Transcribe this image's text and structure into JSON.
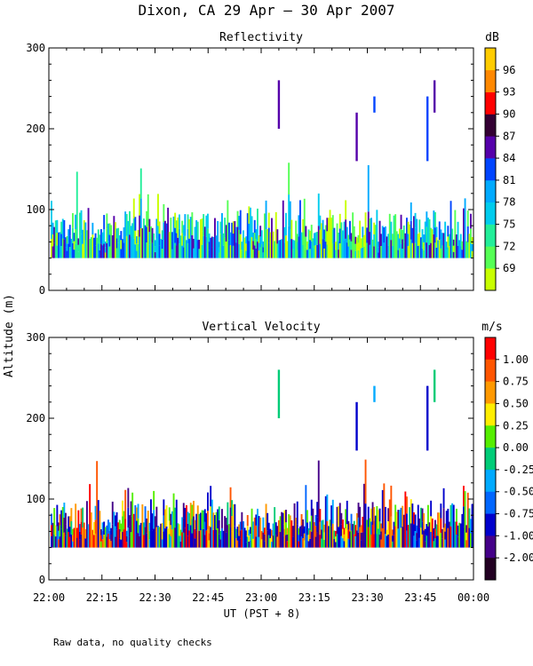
{
  "title": "Dixon, CA 29 Apr — 30 Apr 2007",
  "shared_ylabel": "Altitude (m)",
  "xlabel": "UT  (PST + 8)",
  "footer": "Raw data, no quality checks",
  "x_ticks": [
    "22:00",
    "22:15",
    "22:30",
    "22:45",
    "23:00",
    "23:15",
    "23:30",
    "23:45",
    "00:00"
  ],
  "chart_data": [
    {
      "type": "heatmap",
      "title": "Reflectivity",
      "ylabel": "Altitude (m)",
      "xlabel": "UT  (PST + 8)",
      "x_range_minutes": [
        0,
        120
      ],
      "x_tick_labels": [
        "22:00",
        "22:15",
        "22:30",
        "22:45",
        "23:00",
        "23:15",
        "23:30",
        "23:45",
        "00:00"
      ],
      "ylim": [
        0,
        300
      ],
      "y_ticks": [
        0,
        100,
        200,
        300
      ],
      "colorbar": {
        "unit": "dB",
        "levels": [
          69,
          72,
          75,
          78,
          81,
          84,
          87,
          90,
          93,
          96
        ],
        "colors": [
          "#c8ff00",
          "#55ff55",
          "#22ee99",
          "#00ccee",
          "#00aaff",
          "#0044ff",
          "#5500aa",
          "#330033",
          "#ff0000",
          "#ff8800",
          "#ffcc00"
        ]
      },
      "features": [
        {
          "kind": "near-surface echo band",
          "from_min": 0,
          "to_min": 120,
          "alt_base_m": 40,
          "alt_top_m": 100,
          "max_spike_m": 160
        },
        {
          "kind": "elevated echo",
          "time": "23:05",
          "alt_m": [
            200,
            260
          ],
          "value_db": 84
        },
        {
          "kind": "elevated echo",
          "time": "23:27",
          "alt_m": [
            160,
            220
          ],
          "value_db": 84
        },
        {
          "kind": "elevated echo",
          "time": "23:32",
          "alt_m": [
            220,
            240
          ],
          "value_db": 81
        },
        {
          "kind": "elevated echo",
          "time": "23:47",
          "alt_m": [
            160,
            240
          ],
          "value_db": 81
        },
        {
          "kind": "elevated echo",
          "time": "23:49",
          "alt_m": [
            220,
            260
          ],
          "value_db": 84
        }
      ]
    },
    {
      "type": "heatmap",
      "title": "Vertical Velocity",
      "ylabel": "Altitude (m)",
      "xlabel": "UT  (PST + 8)",
      "x_range_minutes": [
        0,
        120
      ],
      "x_tick_labels": [
        "22:00",
        "22:15",
        "22:30",
        "22:45",
        "23:00",
        "23:15",
        "23:30",
        "23:45",
        "00:00"
      ],
      "ylim": [
        0,
        300
      ],
      "y_ticks": [
        0,
        100,
        200,
        300
      ],
      "colorbar": {
        "unit": "m/s",
        "levels": [
          "1.00",
          "0.75",
          "0.50",
          "0.25",
          "0.00",
          "-0.25",
          "-0.50",
          "-0.75",
          "-1.00",
          "-2.00"
        ],
        "colors": [
          "#ff0000",
          "#ff5500",
          "#ff9900",
          "#ffee00",
          "#55ee00",
          "#00cc77",
          "#00aaff",
          "#0066ff",
          "#0000cc",
          "#440088",
          "#220022"
        ]
      },
      "features": [
        {
          "kind": "near-surface echo band",
          "from_min": 0,
          "to_min": 120,
          "alt_base_m": 40,
          "alt_top_m": 100,
          "max_spike_m": 160
        },
        {
          "kind": "elevated echo",
          "time": "23:05",
          "alt_m": [
            200,
            260
          ],
          "value_ms": -0.25
        },
        {
          "kind": "elevated echo",
          "time": "23:27",
          "alt_m": [
            160,
            220
          ],
          "value_ms": -1.0
        },
        {
          "kind": "elevated echo",
          "time": "23:32",
          "alt_m": [
            220,
            240
          ],
          "value_ms": -0.5
        },
        {
          "kind": "elevated echo",
          "time": "23:47",
          "alt_m": [
            160,
            240
          ],
          "value_ms": -1.0
        },
        {
          "kind": "elevated echo",
          "time": "23:49",
          "alt_m": [
            220,
            260
          ],
          "value_ms": -0.25
        }
      ]
    }
  ]
}
